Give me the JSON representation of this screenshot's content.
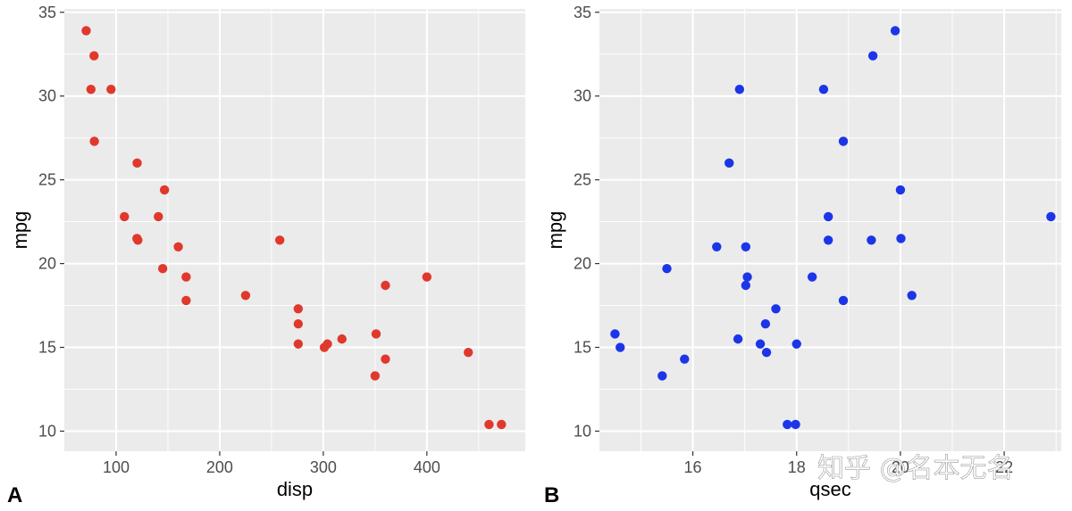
{
  "chart_data": [
    {
      "type": "scatter",
      "panel_tag": "A",
      "xlabel": "disp",
      "ylabel": "mpg",
      "xlim": [
        50,
        495
      ],
      "ylim": [
        8.8,
        35.2
      ],
      "x_ticks": [
        100,
        200,
        300,
        400
      ],
      "y_ticks": [
        10,
        15,
        20,
        25,
        30,
        35
      ],
      "grid": true,
      "point_color": "#e0382d",
      "points": [
        {
          "x": 71.1,
          "y": 33.9
        },
        {
          "x": 78.7,
          "y": 32.4
        },
        {
          "x": 75.7,
          "y": 30.4
        },
        {
          "x": 95.1,
          "y": 30.4
        },
        {
          "x": 79.0,
          "y": 27.3
        },
        {
          "x": 120.3,
          "y": 26.0
        },
        {
          "x": 146.7,
          "y": 24.4
        },
        {
          "x": 108.0,
          "y": 22.8
        },
        {
          "x": 140.8,
          "y": 22.8
        },
        {
          "x": 120.1,
          "y": 21.5
        },
        {
          "x": 121.0,
          "y": 21.4
        },
        {
          "x": 258.0,
          "y": 21.4
        },
        {
          "x": 160.0,
          "y": 21.0
        },
        {
          "x": 145.0,
          "y": 19.7
        },
        {
          "x": 167.6,
          "y": 19.2
        },
        {
          "x": 400.0,
          "y": 19.2
        },
        {
          "x": 360.0,
          "y": 18.7
        },
        {
          "x": 225.0,
          "y": 18.1
        },
        {
          "x": 167.6,
          "y": 17.8
        },
        {
          "x": 275.8,
          "y": 17.3
        },
        {
          "x": 275.8,
          "y": 16.4
        },
        {
          "x": 351.0,
          "y": 15.8
        },
        {
          "x": 318.0,
          "y": 15.5
        },
        {
          "x": 275.8,
          "y": 15.2
        },
        {
          "x": 304.0,
          "y": 15.2
        },
        {
          "x": 301.0,
          "y": 15.0
        },
        {
          "x": 440.0,
          "y": 14.7
        },
        {
          "x": 360.0,
          "y": 14.3
        },
        {
          "x": 350.0,
          "y": 13.3
        },
        {
          "x": 460.0,
          "y": 10.4
        },
        {
          "x": 472.0,
          "y": 10.4
        }
      ]
    },
    {
      "type": "scatter",
      "panel_tag": "B",
      "xlabel": "qsec",
      "ylabel": "mpg",
      "xlim": [
        14.2,
        23.1
      ],
      "ylim": [
        8.8,
        35.2
      ],
      "x_ticks": [
        16,
        18,
        20,
        22
      ],
      "y_ticks": [
        10,
        15,
        20,
        25,
        30,
        35
      ],
      "grid": true,
      "point_color": "#1c35e8",
      "points": [
        {
          "x": 19.9,
          "y": 33.9
        },
        {
          "x": 19.47,
          "y": 32.4
        },
        {
          "x": 18.52,
          "y": 30.4
        },
        {
          "x": 16.9,
          "y": 30.4
        },
        {
          "x": 18.9,
          "y": 27.3
        },
        {
          "x": 16.7,
          "y": 26.0
        },
        {
          "x": 20.0,
          "y": 24.4
        },
        {
          "x": 22.9,
          "y": 22.8
        },
        {
          "x": 18.61,
          "y": 22.8
        },
        {
          "x": 20.01,
          "y": 21.5
        },
        {
          "x": 19.44,
          "y": 21.4
        },
        {
          "x": 18.61,
          "y": 21.4
        },
        {
          "x": 16.46,
          "y": 21.0
        },
        {
          "x": 17.02,
          "y": 21.0
        },
        {
          "x": 15.5,
          "y": 19.7
        },
        {
          "x": 18.3,
          "y": 19.2
        },
        {
          "x": 17.05,
          "y": 19.2
        },
        {
          "x": 17.02,
          "y": 18.7
        },
        {
          "x": 20.22,
          "y": 18.1
        },
        {
          "x": 18.9,
          "y": 17.8
        },
        {
          "x": 17.6,
          "y": 17.3
        },
        {
          "x": 17.4,
          "y": 16.4
        },
        {
          "x": 14.5,
          "y": 15.8
        },
        {
          "x": 16.87,
          "y": 15.5
        },
        {
          "x": 17.3,
          "y": 15.2
        },
        {
          "x": 18.0,
          "y": 15.2
        },
        {
          "x": 14.6,
          "y": 15.0
        },
        {
          "x": 17.42,
          "y": 14.7
        },
        {
          "x": 15.84,
          "y": 14.3
        },
        {
          "x": 15.41,
          "y": 13.3
        },
        {
          "x": 17.82,
          "y": 10.4
        },
        {
          "x": 17.98,
          "y": 10.4
        }
      ]
    }
  ],
  "watermark": {
    "text": "知乎 @名本无名"
  },
  "colors": {
    "panel_bg": "#ebebeb",
    "grid": "#ffffff",
    "tick_text": "#4d4d4d"
  }
}
